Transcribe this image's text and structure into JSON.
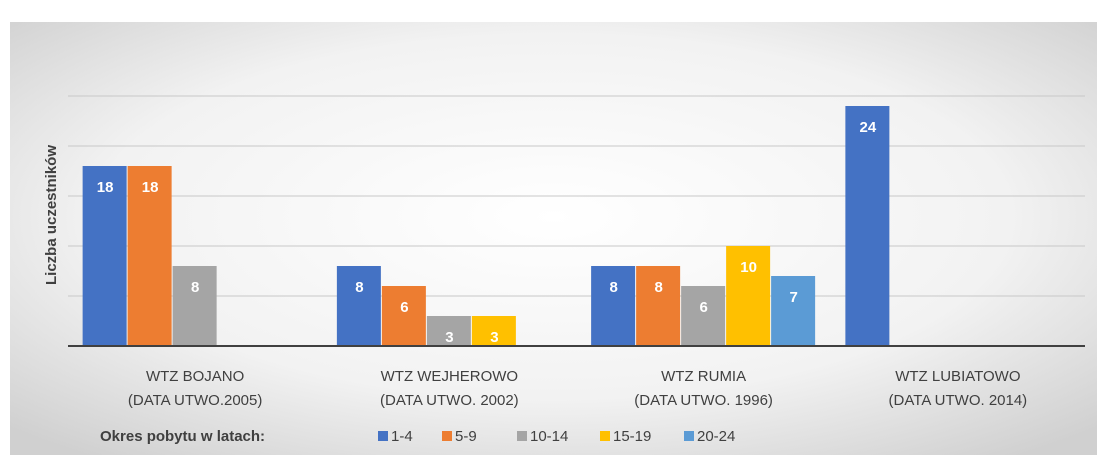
{
  "chart_data": {
    "type": "bar",
    "y_label": "Liczba uczestników",
    "legend_title": "Okres pobytu w latach:",
    "categories": [
      [
        "WTZ BOJANO",
        "(DATA UTWO.2005)"
      ],
      [
        "WTZ WEJHEROWO",
        "(DATA UTWO. 2002)"
      ],
      [
        "WTZ RUMIA",
        "(DATA UTWO. 1996)"
      ],
      [
        "WTZ LUBIATOWO",
        "(DATA UTWO. 2014)"
      ]
    ],
    "series": [
      {
        "name": "1-4",
        "color": "#4472c4",
        "values": [
          18,
          8,
          8,
          24
        ]
      },
      {
        "name": "5-9",
        "color": "#ed7d31",
        "values": [
          18,
          6,
          8,
          null
        ]
      },
      {
        "name": "10-14",
        "color": "#a5a5a5",
        "values": [
          8,
          3,
          6,
          null
        ]
      },
      {
        "name": "15-19",
        "color": "#ffc000",
        "values": [
          null,
          3,
          10,
          null
        ]
      },
      {
        "name": "20-24",
        "color": "#5b9bd5",
        "values": [
          null,
          null,
          7,
          null
        ]
      }
    ],
    "ylim": [
      0,
      25
    ],
    "yticks": [
      0,
      5,
      10,
      15,
      20,
      25
    ],
    "grid": true
  }
}
